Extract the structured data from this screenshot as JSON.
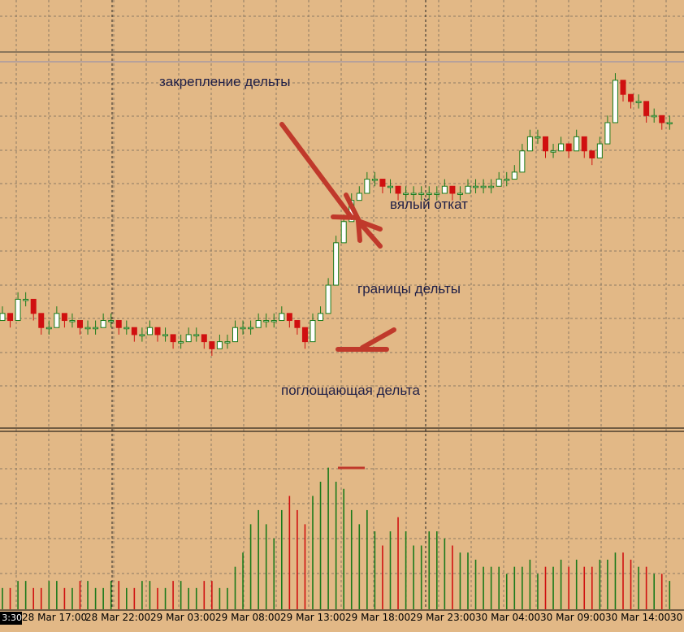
{
  "annotations": {
    "delta_fix": "закрепление дельты",
    "weak_pullback": "вялый откат",
    "delta_bounds": "границы дельты",
    "absorbing_delta": "поглощающая дельта"
  },
  "time_axis": {
    "left_tag": "3:30",
    "labels": [
      "28 Mar 17:00",
      "28 Mar 22:00",
      "29 Mar 03:00",
      "29 Mar 08:00",
      "29 Mar 13:00",
      "29 Mar 18:00",
      "29 Mar 23:00",
      "30 Mar 04:00",
      "30 Mar 09:00",
      "30 Mar 14:00",
      "30"
    ]
  },
  "colors": {
    "background": "#e2b886",
    "grid": "#8c7a64",
    "bull": "#1a7a1a",
    "bear": "#d01010",
    "arrow": "#c0392b",
    "annotation_text": "#1e1e46"
  },
  "chart_data": [
    {
      "type": "candlestick",
      "panel": "price",
      "x_axis": "time",
      "grid": true,
      "bull_color": "green outline, white body",
      "bear_color": "red",
      "close_series": [
        101,
        100,
        103,
        103,
        101,
        99,
        99,
        101,
        100,
        100,
        99,
        99,
        99,
        100,
        100,
        99,
        99,
        98,
        98,
        99,
        98,
        98,
        97,
        97,
        98,
        98,
        97,
        96,
        97,
        97,
        99,
        99,
        99,
        100,
        100,
        100,
        101,
        100,
        99,
        97,
        100,
        101,
        105,
        111,
        114,
        117,
        118,
        120,
        120,
        119,
        119,
        118,
        118,
        118,
        118,
        118,
        118,
        119,
        118,
        118,
        119,
        119,
        119,
        119,
        120,
        120,
        121,
        124,
        126,
        126,
        124,
        124,
        125,
        124,
        126,
        124,
        123,
        125,
        128,
        134,
        132,
        131,
        131,
        129,
        129,
        128,
        128
      ],
      "high_series": [
        102,
        101,
        104,
        104,
        102,
        100,
        100,
        102,
        101,
        101,
        100,
        100,
        100,
        101,
        101,
        100,
        100,
        99,
        99,
        100,
        99,
        99,
        98,
        98,
        99,
        99,
        98,
        97,
        98,
        98,
        100,
        100,
        100,
        101,
        101,
        101,
        102,
        101,
        100,
        98,
        101,
        102,
        106,
        112,
        115,
        118,
        119,
        121,
        121,
        120,
        120,
        119,
        119,
        119,
        119,
        119,
        119,
        120,
        119,
        119,
        120,
        120,
        120,
        120,
        121,
        121,
        122,
        125,
        127,
        127,
        125,
        125,
        126,
        125,
        127,
        125,
        124,
        126,
        129,
        135,
        133,
        132,
        132,
        130,
        130,
        129,
        129
      ],
      "low_series": [
        100,
        99,
        102,
        102,
        100,
        98,
        98,
        100,
        99,
        99,
        98,
        98,
        98,
        99,
        99,
        98,
        98,
        97,
        97,
        98,
        97,
        97,
        96,
        96,
        97,
        97,
        96,
        95,
        96,
        96,
        98,
        98,
        98,
        99,
        99,
        99,
        100,
        99,
        98,
        96,
        99,
        100,
        104,
        110,
        113,
        116,
        117,
        119,
        119,
        118,
        118,
        117,
        117,
        117,
        117,
        117,
        117,
        118,
        117,
        117,
        118,
        118,
        118,
        118,
        119,
        119,
        120,
        123,
        125,
        125,
        123,
        123,
        124,
        123,
        125,
        123,
        122,
        124,
        127,
        133,
        131,
        130,
        130,
        128,
        128,
        127,
        127
      ]
    },
    {
      "type": "bar",
      "panel": "delta",
      "x_axis": "time",
      "grid": true,
      "values": [
        3,
        3,
        4,
        4,
        3,
        3,
        4,
        4,
        3,
        3,
        4,
        4,
        3,
        3,
        4,
        4,
        3,
        3,
        4,
        4,
        3,
        3,
        4,
        4,
        3,
        3,
        4,
        4,
        3,
        3,
        6,
        8,
        12,
        14,
        12,
        10,
        14,
        16,
        14,
        12,
        16,
        18,
        20,
        18,
        17,
        14,
        12,
        14,
        11,
        9,
        11,
        13,
        11,
        9,
        9,
        11,
        11,
        10,
        9,
        8,
        8,
        7,
        6,
        6,
        6,
        5,
        6,
        6,
        7,
        5,
        6,
        6,
        7,
        6,
        7,
        6,
        6,
        7,
        7,
        8,
        8,
        7,
        6,
        6,
        5,
        5,
        4
      ]
    }
  ]
}
